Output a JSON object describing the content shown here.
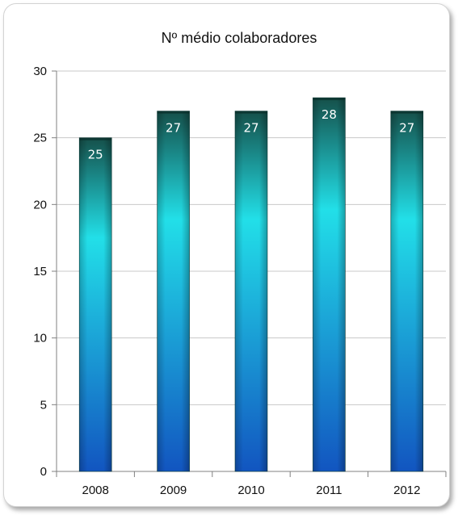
{
  "chart_data": {
    "type": "bar",
    "title": "Nº médio colaboradores",
    "categories": [
      "2008",
      "2009",
      "2010",
      "2011",
      "2012"
    ],
    "values": [
      25,
      27,
      27,
      28,
      27
    ],
    "data_labels": [
      "25",
      "27",
      "27",
      "28",
      "27"
    ],
    "ylim": [
      0,
      30
    ],
    "yticks": [
      "0",
      "5",
      "10",
      "15",
      "20",
      "25",
      "30"
    ],
    "ytick_values": [
      0,
      5,
      10,
      15,
      20,
      25,
      30
    ],
    "xlabel": "",
    "ylabel": "",
    "grid": true,
    "legend": "none",
    "colors": {
      "bar_top": "#15504a",
      "bar_mid": "#22dfe8",
      "bar_bottom": "#1255c0",
      "gridline": "#c8c8c8",
      "axis": "#808080"
    }
  }
}
